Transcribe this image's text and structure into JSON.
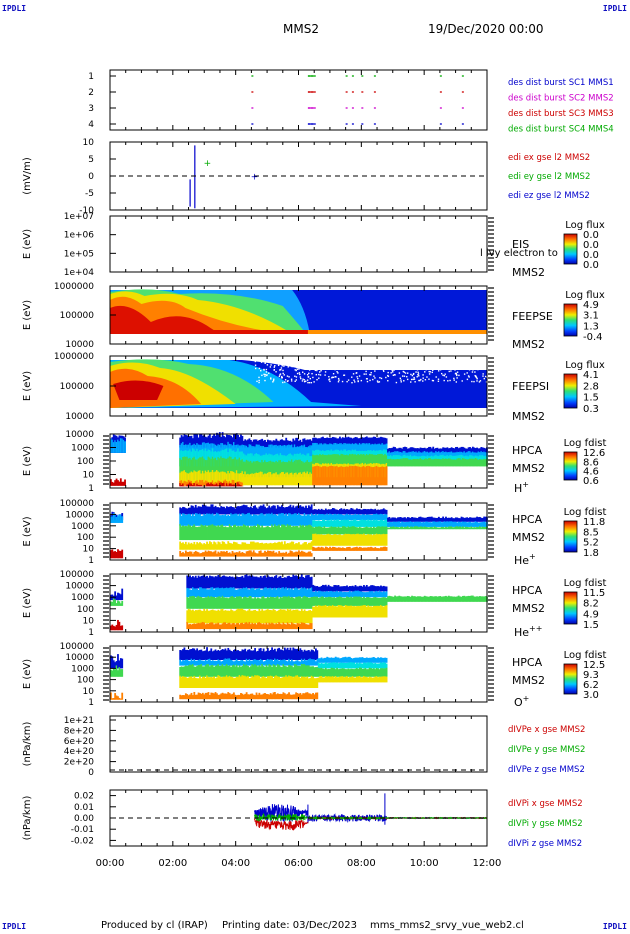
{
  "corner_label": "IPDLI",
  "header": {
    "title": "MMS2",
    "date": "19/Dec/2020 00:00"
  },
  "footer": {
    "produced_by": "Produced by cl (IRAP)",
    "printing_date": "Printing date: 03/Dec/2023",
    "script_name": "mms_mms2_srvy_vue_web2.cl"
  },
  "colors": {
    "mms1": "#0000cc",
    "mms2": "#cc00cc",
    "mms3": "#cc0000",
    "mms4": "#00aa00",
    "x": "#cc0000",
    "y": "#00aa00",
    "z": "#0000cc"
  },
  "chart_data": {
    "type": "heatmap",
    "time_axis": {
      "ticks": [
        "00:00",
        "02:00",
        "04:00",
        "06:00",
        "08:00",
        "10:00",
        "12:00"
      ],
      "range_hours": [
        0,
        12
      ]
    },
    "panels": [
      {
        "id": "burst",
        "type": "scatter",
        "ylim": [
          0.5,
          4.5
        ],
        "yticks": [
          "1",
          "2",
          "3",
          "4"
        ],
        "legend": [
          "des dist burst SC1 MMS1",
          "des dist burst SC2 MMS2",
          "des dist burst SC3 MMS3",
          "des dist burst SC4 MMS4"
        ],
        "burst_times_hours": [
          4.5,
          6.3,
          6.4,
          7.5,
          7.7,
          8.0,
          8.4,
          10.5,
          11.2
        ]
      },
      {
        "id": "edi_e",
        "type": "line",
        "ylabel": "(mV/m)",
        "ylim": [
          -10,
          10
        ],
        "yticks": [
          "10",
          "5",
          "0",
          "-5",
          "-10"
        ],
        "legend": [
          "edi ex gse l2 MMS2",
          "edi ey gse l2 MMS2",
          "edi ez gse l2 MMS2"
        ],
        "data_range_hours": [
          1.9,
          6.4
        ]
      },
      {
        "id": "eis",
        "type": "heatmap",
        "ylabel": "E (eV)",
        "yscale": "log",
        "yticks": [
          "1e+07",
          "1e+06",
          "1e+05",
          "1e+04"
        ],
        "instrument": [
          "EIS",
          "MMS2"
        ],
        "overlay_text": "l lvy electron to",
        "colorbar": {
          "title": "Log flux",
          "ticks": [
            "0.0",
            "0.0",
            "0.0",
            "0.0"
          ]
        }
      },
      {
        "id": "feeps_e",
        "type": "heatmap",
        "ylabel": "E (eV)",
        "yscale": "log",
        "yticks": [
          "1000000",
          "100000",
          "10000"
        ],
        "instrument": [
          "FEEPSE",
          "MMS2"
        ],
        "colorbar": {
          "title": "Log flux",
          "ticks": [
            "4.9",
            "3.1",
            "1.3",
            "-0.4"
          ]
        }
      },
      {
        "id": "feeps_i",
        "type": "heatmap",
        "ylabel": "E (eV)",
        "yscale": "log",
        "yticks": [
          "1000000",
          "100000",
          "10000"
        ],
        "instrument": [
          "FEEPSI",
          "MMS2"
        ],
        "colorbar": {
          "title": "Log flux",
          "ticks": [
            "4.1",
            "2.8",
            "1.5",
            "0.3"
          ]
        }
      },
      {
        "id": "hpca_h",
        "type": "heatmap",
        "ylabel": "E (eV)",
        "yscale": "log",
        "yticks": [
          "10000",
          "1000",
          "100",
          "10",
          "1"
        ],
        "instrument": [
          "HPCA",
          "MMS2"
        ],
        "species": "H",
        "charge": "+",
        "colorbar": {
          "title": "Log fdist",
          "ticks": [
            "12.6",
            "8.6",
            "4.6",
            "0.6"
          ]
        }
      },
      {
        "id": "hpca_he",
        "type": "heatmap",
        "ylabel": "E (eV)",
        "yscale": "log",
        "yticks": [
          "100000",
          "10000",
          "1000",
          "100",
          "10",
          "1"
        ],
        "instrument": [
          "HPCA",
          "MMS2"
        ],
        "species": "He",
        "charge": "+",
        "colorbar": {
          "title": "Log fdist",
          "ticks": [
            "11.8",
            "8.5",
            "5.2",
            "1.8"
          ]
        }
      },
      {
        "id": "hpca_he2",
        "type": "heatmap",
        "ylabel": "E (eV)",
        "yscale": "log",
        "yticks": [
          "100000",
          "10000",
          "1000",
          "100",
          "10",
          "1"
        ],
        "instrument": [
          "HPCA",
          "MMS2"
        ],
        "species": "He",
        "charge": "++",
        "colorbar": {
          "title": "Log fdist",
          "ticks": [
            "11.5",
            "8.2",
            "4.9",
            "1.5"
          ]
        }
      },
      {
        "id": "hpca_o",
        "type": "heatmap",
        "ylabel": "E (eV)",
        "yscale": "log",
        "yticks": [
          "100000",
          "10000",
          "1000",
          "100",
          "10",
          "1"
        ],
        "instrument": [
          "HPCA",
          "MMS2"
        ],
        "species": "O",
        "charge": "+",
        "colorbar": {
          "title": "Log fdist",
          "ticks": [
            "12.5",
            "9.3",
            "6.2",
            "3.0"
          ]
        }
      },
      {
        "id": "divpe",
        "type": "line",
        "ylabel": "(nPa/km)",
        "ylim": [
          0,
          1e+21
        ],
        "yticks": [
          "1e+21",
          "8e+20",
          "6e+20",
          "4e+20",
          "2e+20",
          "0"
        ],
        "legend": [
          "dIVPe x gse MMS2",
          "dIVPe y gse MMS2",
          "dIVPe z gse MMS2"
        ]
      },
      {
        "id": "divpi",
        "type": "line",
        "ylabel": "(nPa/km)",
        "ylim": [
          -0.025,
          0.025
        ],
        "yticks": [
          "0.02",
          "0.01",
          "0.00",
          "-0.01",
          "-0.02"
        ],
        "legend": [
          "dIVPi x gse MMS2",
          "dIVPi y gse MMS2",
          "dIVPi z gse MMS2"
        ],
        "data_range_hours": [
          4.6,
          12
        ]
      }
    ]
  }
}
